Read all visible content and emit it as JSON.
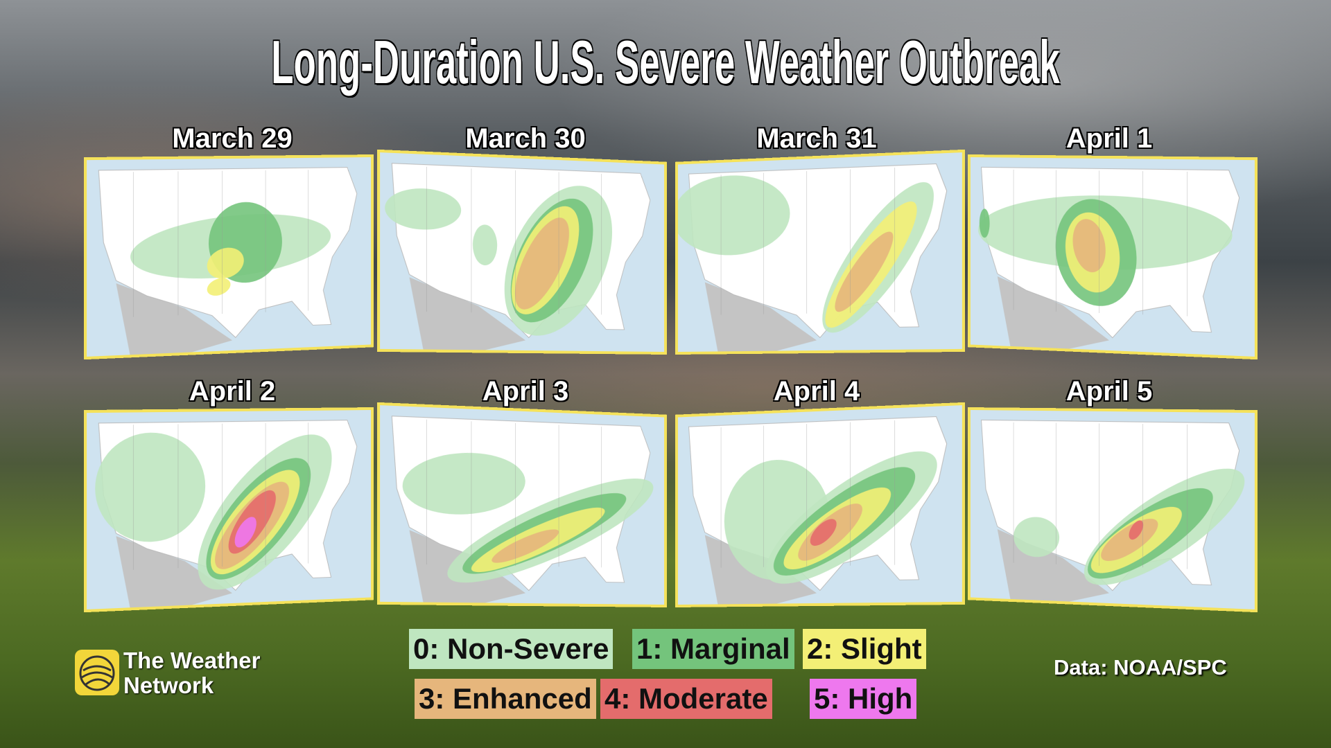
{
  "header": {
    "title": "Long-Duration U.S. Severe Weather Outbreak"
  },
  "panels": [
    "March 29",
    "March 30",
    "March 31",
    "April 1",
    "April 2",
    "April 3",
    "April 4",
    "April 5"
  ],
  "legend": [
    "0: Non-Severe",
    "1: Marginal",
    "2: Slight",
    "3: Enhanced",
    "4: Moderate",
    "5: High"
  ],
  "brand": {
    "line1": "The Weather",
    "line2": "Network"
  },
  "source": "Data: NOAA/SPC"
}
